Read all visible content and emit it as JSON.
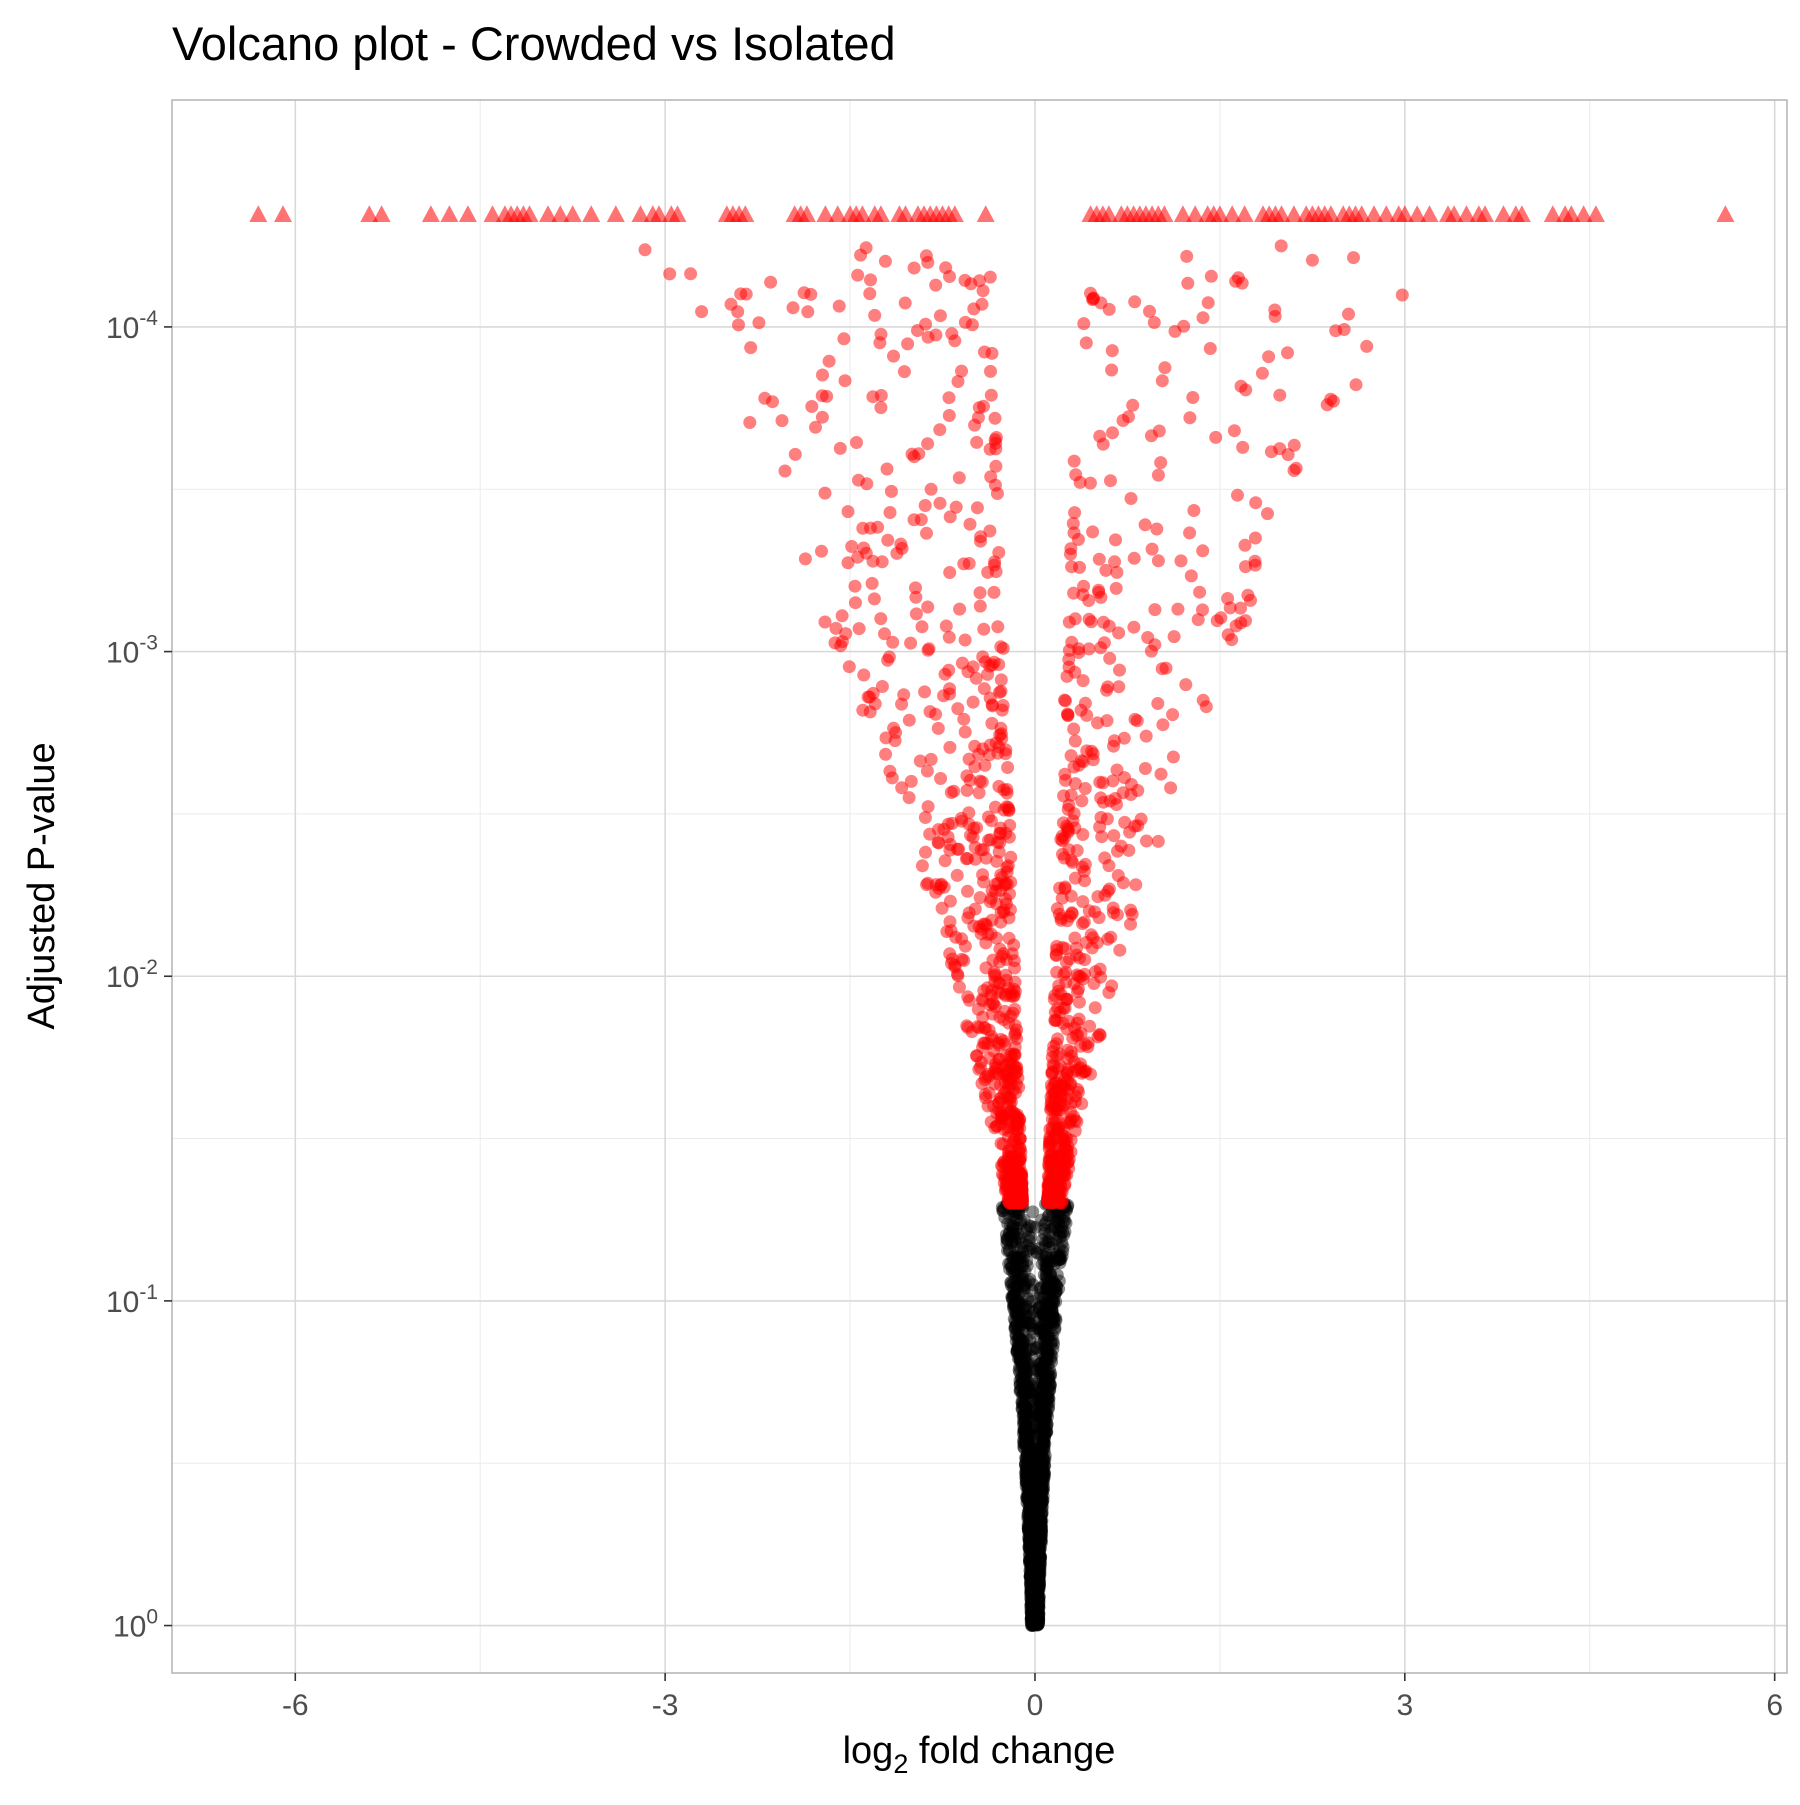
{
  "chart_data": {
    "type": "scatter",
    "title": "Volcano plot - Crowded vs Isolated",
    "xlabel": {
      "base": "log",
      "sub": "2",
      "rest": " fold change"
    },
    "ylabel": "Adjusted P-value",
    "xlim": [
      -7,
      6.1
    ],
    "y_scale": "log10 reversed",
    "ylim": [
      1.4,
      2e-05
    ],
    "x_ticks": [
      {
        "value": -6,
        "label": "-6"
      },
      {
        "value": -3,
        "label": "-3"
      },
      {
        "value": 0,
        "label": "0"
      },
      {
        "value": 3,
        "label": "3"
      },
      {
        "value": 6,
        "label": "6"
      }
    ],
    "y_ticks": [
      {
        "value": 1,
        "base": "10",
        "exp": "0"
      },
      {
        "value": 0.1,
        "base": "10",
        "exp": "-1"
      },
      {
        "value": 0.01,
        "base": "10",
        "exp": "-2"
      },
      {
        "value": 0.001,
        "base": "10",
        "exp": "-3"
      },
      {
        "value": 0.0001,
        "base": "10",
        "exp": "-4"
      }
    ],
    "significance_threshold": 0.05,
    "grid": true,
    "legend": "none",
    "colors": {
      "significant": "#ff0000",
      "not_significant": "#000000",
      "panel_border": "#b3b3b3",
      "grid": "#d9d9d9"
    },
    "capped_value": 4.5e-05,
    "capped_points_x": [
      -6.3,
      -6.1,
      -5.4,
      -5.3,
      -4.9,
      -4.75,
      -4.6,
      -4.4,
      -4.3,
      -4.25,
      -4.2,
      -4.15,
      -4.1,
      -3.95,
      -3.85,
      -3.75,
      -3.6,
      -3.4,
      -3.2,
      -3.1,
      -3.05,
      -2.95,
      -2.9,
      -2.5,
      -2.45,
      -2.4,
      -2.35,
      -1.95,
      -1.9,
      -1.85,
      -1.7,
      -1.6,
      -1.5,
      -1.45,
      -1.4,
      -1.3,
      -1.25,
      -1.1,
      -1.05,
      -0.95,
      -0.9,
      -0.85,
      -0.8,
      -0.75,
      -0.7,
      -0.65,
      -0.4,
      0.45,
      0.5,
      0.55,
      0.6,
      0.7,
      0.75,
      0.8,
      0.85,
      0.9,
      0.95,
      1.0,
      1.05,
      1.2,
      1.3,
      1.4,
      1.45,
      1.5,
      1.6,
      1.7,
      1.85,
      1.9,
      1.95,
      2.0,
      2.1,
      2.2,
      2.25,
      2.3,
      2.35,
      2.4,
      2.5,
      2.55,
      2.6,
      2.65,
      2.75,
      2.85,
      2.95,
      3.0,
      3.1,
      3.2,
      3.35,
      3.4,
      3.5,
      3.6,
      3.65,
      3.8,
      3.9,
      3.95,
      4.2,
      4.3,
      4.35,
      4.45,
      4.55,
      5.6
    ],
    "point_summary": "Roughly 3,000 genes. Non-significant genes (adjusted P > 0.05) form a black funnel tightly around log2FC 0 from P = 1 up to P = 0.05; significant genes (adjusted P <= 0.05) are red and fan out to |log2FC| ~ 4.3 at P ~ 1e-4. Genes with adjusted P below ~4.5e-5 are drawn as red triangles capped at the top of the panel."
  }
}
